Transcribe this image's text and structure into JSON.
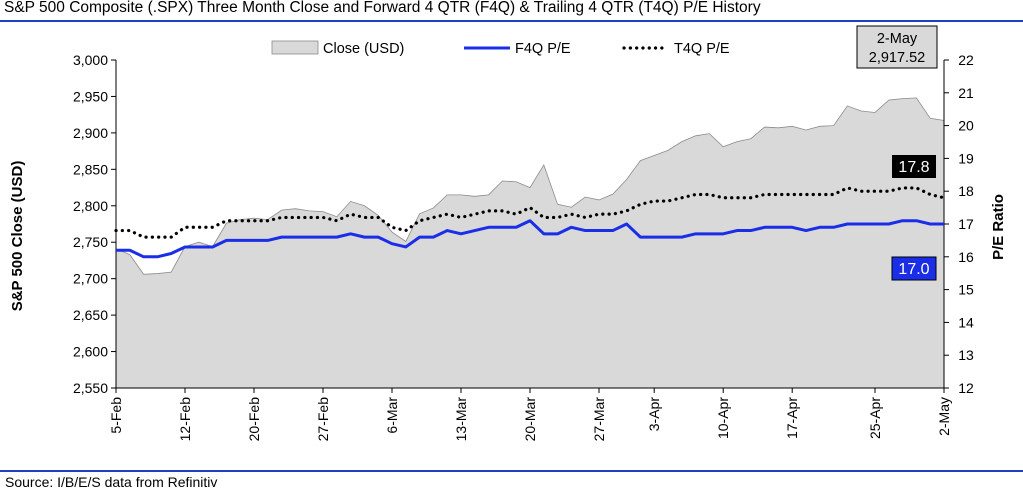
{
  "title": "S&P 500 Composite (.SPX) Three Month Close and Forward 4 QTR (F4Q) & Trailing 4 QTR (T4Q) P/E History",
  "source": "Source: I/B/E/S data from Refinitiv",
  "colors": {
    "rule": "#1f3fbf",
    "close_fill": "#d9d9d9",
    "close_edge": "#8c8c8c",
    "f4q": "#1a2ee8",
    "t4q": "#000000"
  },
  "chart_data": {
    "type": "area",
    "ylabel": "S&P 500 Close (USD)",
    "y2label": "P/E Ratio",
    "ylim": [
      2550,
      3000
    ],
    "y2lim": [
      12,
      22
    ],
    "yticks": [
      "2,550",
      "2,600",
      "2,650",
      "2,700",
      "2,750",
      "2,800",
      "2,850",
      "2,900",
      "2,950",
      "3,000"
    ],
    "y2ticks": [
      "12",
      "13",
      "14",
      "15",
      "16",
      "17",
      "18",
      "19",
      "20",
      "21",
      "22"
    ],
    "xticks": [
      "5-Feb",
      "12-Feb",
      "20-Feb",
      "27-Feb",
      "6-Mar",
      "13-Mar",
      "20-Mar",
      "27-Mar",
      "3-Apr",
      "10-Apr",
      "17-Apr",
      "25-Apr",
      "2-May"
    ],
    "x": [
      "5-Feb",
      "6-Feb",
      "7-Feb",
      "8-Feb",
      "9-Feb",
      "12-Feb",
      "13-Feb",
      "14-Feb",
      "15-Feb",
      "16-Feb",
      "20-Feb",
      "21-Feb",
      "22-Feb",
      "23-Feb",
      "26-Feb",
      "27-Feb",
      "28-Feb",
      "1-Mar",
      "2-Mar",
      "5-Mar",
      "6-Mar",
      "7-Mar",
      "8-Mar",
      "9-Mar",
      "12-Mar",
      "13-Mar",
      "14-Mar",
      "15-Mar",
      "16-Mar",
      "19-Mar",
      "20-Mar",
      "21-Mar",
      "22-Mar",
      "23-Mar",
      "26-Mar",
      "27-Mar",
      "28-Mar",
      "29-Mar",
      "2-Apr",
      "3-Apr",
      "4-Apr",
      "5-Apr",
      "6-Apr",
      "9-Apr",
      "10-Apr",
      "11-Apr",
      "12-Apr",
      "13-Apr",
      "16-Apr",
      "17-Apr",
      "18-Apr",
      "19-Apr",
      "20-Apr",
      "23-Apr",
      "24-Apr",
      "25-Apr",
      "26-Apr",
      "27-Apr",
      "30-Apr",
      "1-May",
      "2-May"
    ],
    "series": [
      {
        "name": "Close (USD)",
        "type": "area",
        "axis": "left",
        "values": [
          2741,
          2733,
          2706,
          2707,
          2709,
          2744,
          2750,
          2744,
          2776,
          2781,
          2783,
          2781,
          2794,
          2796,
          2793,
          2792,
          2785,
          2806,
          2800,
          2787,
          2764,
          2751,
          2789,
          2797,
          2815,
          2815,
          2813,
          2815,
          2834,
          2833,
          2825,
          2856,
          2802,
          2798,
          2812,
          2808,
          2816,
          2836,
          2862,
          2869,
          2876,
          2888,
          2896,
          2899,
          2881,
          2888,
          2892,
          2908,
          2907,
          2909,
          2904,
          2909,
          2910,
          2937,
          2930,
          2928,
          2945,
          2947,
          2948,
          2920,
          2917
        ]
      },
      {
        "name": "F4Q P/E",
        "type": "line",
        "axis": "right",
        "values": [
          16.2,
          16.2,
          16.0,
          16.0,
          16.1,
          16.3,
          16.3,
          16.3,
          16.5,
          16.5,
          16.5,
          16.5,
          16.6,
          16.6,
          16.6,
          16.6,
          16.6,
          16.7,
          16.6,
          16.6,
          16.4,
          16.3,
          16.6,
          16.6,
          16.8,
          16.7,
          16.8,
          16.9,
          16.9,
          16.9,
          17.1,
          16.7,
          16.7,
          16.9,
          16.8,
          16.8,
          16.8,
          17.0,
          16.6,
          16.6,
          16.6,
          16.6,
          16.7,
          16.7,
          16.7,
          16.8,
          16.8,
          16.9,
          16.9,
          16.9,
          16.8,
          16.9,
          16.9,
          17.0,
          17.0,
          17.0,
          17.0,
          17.1,
          17.1,
          17.0,
          17.0
        ]
      },
      {
        "name": "T4Q P/E",
        "type": "line",
        "axis": "right",
        "values": [
          16.8,
          16.8,
          16.6,
          16.6,
          16.6,
          16.9,
          16.9,
          16.9,
          17.1,
          17.1,
          17.1,
          17.1,
          17.2,
          17.2,
          17.2,
          17.2,
          17.1,
          17.3,
          17.2,
          17.2,
          16.9,
          16.8,
          17.1,
          17.2,
          17.3,
          17.2,
          17.3,
          17.4,
          17.4,
          17.3,
          17.5,
          17.2,
          17.2,
          17.3,
          17.2,
          17.3,
          17.3,
          17.4,
          17.6,
          17.7,
          17.7,
          17.8,
          17.9,
          17.9,
          17.8,
          17.8,
          17.8,
          17.9,
          17.9,
          17.9,
          17.9,
          17.9,
          17.9,
          18.1,
          18.0,
          18.0,
          18.0,
          18.1,
          18.1,
          17.9,
          17.8
        ]
      }
    ],
    "legend": {
      "position": "top",
      "items": [
        "Close (USD)",
        "F4Q P/E",
        "T4Q P/E"
      ]
    },
    "annotations": {
      "date_box": {
        "date": "2-May",
        "value": "2,917.52"
      },
      "t4q_last": "17.8",
      "f4q_last": "17.0"
    },
    "grid": false
  }
}
